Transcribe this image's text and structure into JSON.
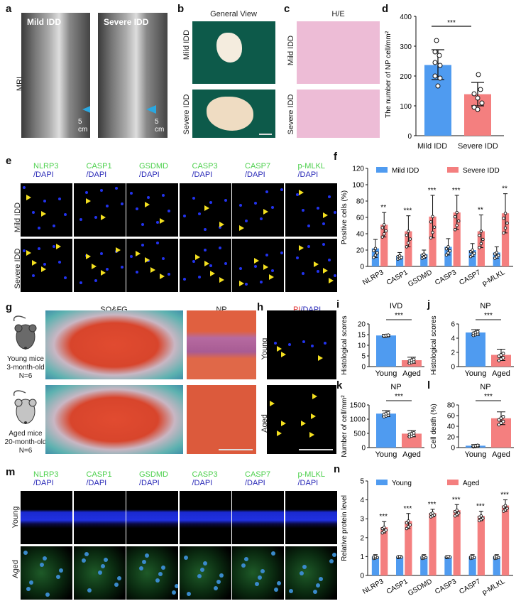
{
  "panels": {
    "a": {
      "letter": "a",
      "row_label": "MRI",
      "images": [
        {
          "label": "Mild IDD",
          "scale": "5 cm"
        },
        {
          "label": "Severe IDD",
          "scale": "5 cm"
        }
      ]
    },
    "b": {
      "letter": "b",
      "title": "General View",
      "rows": [
        "Mild IDD",
        "Severe IDD"
      ]
    },
    "c": {
      "letter": "c",
      "title": "H/E",
      "rows": [
        "Mild IDD",
        "Severe IDD"
      ]
    },
    "d": {
      "letter": "d"
    },
    "e": {
      "letter": "e",
      "stains": [
        {
          "marker": "NLRP3",
          "counter": "/DAPI"
        },
        {
          "marker": "CASP1",
          "counter": "/DAPI"
        },
        {
          "marker": "GSDMD",
          "counter": "/DAPI"
        },
        {
          "marker": "CASP3",
          "counter": "/DAPI"
        },
        {
          "marker": "CASP7",
          "counter": "/DAPI"
        },
        {
          "marker": "p-MLKL",
          "counter": "/DAPI"
        }
      ],
      "rows": [
        "Mild IDD",
        "Severe IDD"
      ]
    },
    "f": {
      "letter": "f"
    },
    "g": {
      "letter": "g",
      "title_main": "SO&FG",
      "title_np": "NP",
      "young": {
        "line1": "Young mice",
        "line2": "3-month-old",
        "line3": "N=6"
      },
      "aged": {
        "line1": "Aged mice",
        "line2": "20-month-old",
        "line3": "N=6"
      }
    },
    "h": {
      "letter": "h",
      "title_pi": "PI",
      "title_dapi": "/DAPI",
      "rows": [
        "Young",
        "Aged"
      ]
    },
    "i": {
      "letter": "i"
    },
    "j": {
      "letter": "j"
    },
    "k": {
      "letter": "k"
    },
    "l": {
      "letter": "l"
    },
    "m": {
      "letter": "m",
      "stains": [
        {
          "marker": "NLRP3",
          "counter": "/DAPI"
        },
        {
          "marker": "CASP1",
          "counter": "/DAPI"
        },
        {
          "marker": "GSDMD",
          "counter": "/DAPI"
        },
        {
          "marker": "CASP3",
          "counter": "/DAPI"
        },
        {
          "marker": "CASP7",
          "counter": "/DAPI"
        },
        {
          "marker": "p-MLKL",
          "counter": "/DAPI"
        }
      ],
      "rows": [
        "Young",
        "Aged"
      ]
    },
    "n": {
      "letter": "n"
    }
  },
  "colors": {
    "blue": "#4f9bf0",
    "red": "#f47f7f"
  },
  "chart_data": [
    {
      "id": "d",
      "type": "bar",
      "title": "",
      "categories": [
        "Mild IDD",
        "Severe IDD"
      ],
      "values": [
        237,
        139
      ],
      "errors": [
        50,
        40
      ],
      "points": [
        [
          320,
          288,
          265,
          240,
          232,
          198,
          192,
          168
        ],
        [
          205,
          180,
          157,
          143,
          125,
          108,
          105,
          90
        ]
      ],
      "ylabel": "The number of NP cell/mm²",
      "ylim": [
        0,
        400
      ],
      "yticks": [
        0,
        100,
        200,
        300,
        400
      ],
      "significance": "***"
    },
    {
      "id": "f",
      "type": "bar",
      "categories": [
        "NLRP3",
        "CASP1",
        "GSDMD",
        "CASP3",
        "CASP7",
        "p-MLKL"
      ],
      "series": [
        {
          "name": "Mild IDD",
          "values": [
            22,
            13,
            15,
            24,
            20,
            17
          ],
          "errors": [
            11,
            4,
            5,
            10,
            8,
            7
          ]
        },
        {
          "name": "Severe IDD",
          "values": [
            51,
            43,
            61,
            66,
            43,
            65
          ],
          "errors": [
            15,
            19,
            26,
            21,
            20,
            24
          ]
        }
      ],
      "significance": [
        "**",
        "***",
        "***",
        "***",
        "**",
        "**"
      ],
      "ylabel": "Positive cells (%)",
      "ylim": [
        0,
        120
      ],
      "yticks": [
        0,
        20,
        40,
        60,
        80,
        100,
        120
      ],
      "legend_position": "top"
    },
    {
      "id": "i",
      "type": "bar",
      "title": "IVD",
      "categories": [
        "Young",
        "Aged"
      ],
      "values": [
        14.6,
        3.0
      ],
      "errors": [
        0.5,
        1.4
      ],
      "ylabel": "Histological scores",
      "ylim": [
        0,
        20
      ],
      "yticks": [
        0,
        5,
        10,
        15,
        20
      ],
      "significance": "***"
    },
    {
      "id": "j",
      "type": "bar",
      "title": "NP",
      "categories": [
        "Young",
        "Aged"
      ],
      "values": [
        4.8,
        1.65
      ],
      "errors": [
        0.4,
        0.8
      ],
      "ylabel": "Histological scores",
      "ylim": [
        0,
        6
      ],
      "yticks": [
        0,
        2,
        4,
        6
      ],
      "significance": "***"
    },
    {
      "id": "k",
      "type": "bar",
      "title": "NP",
      "categories": [
        "Young",
        "Aged"
      ],
      "values": [
        1195,
        490
      ],
      "errors": [
        105,
        110
      ],
      "ylabel": "Number of cell/mm²",
      "ylim": [
        0,
        1500
      ],
      "yticks": [
        0,
        500,
        1000,
        1500
      ],
      "significance": "***"
    },
    {
      "id": "l",
      "type": "bar",
      "title": "NP",
      "categories": [
        "Young",
        "Aged"
      ],
      "values": [
        3.5,
        55
      ],
      "errors": [
        2,
        12
      ],
      "ylabel": "Cell death (%)",
      "ylim": [
        0,
        80
      ],
      "yticks": [
        0,
        20,
        40,
        60,
        80
      ],
      "significance": "***"
    },
    {
      "id": "n",
      "type": "bar",
      "categories": [
        "NLRP3",
        "CASP1",
        "GSDMD",
        "CASP3",
        "CASP7",
        "p-MLKL"
      ],
      "series": [
        {
          "name": "Young",
          "values": [
            1.0,
            1.0,
            1.0,
            1.0,
            1.0,
            1.0
          ],
          "errors": [
            0.1,
            0.05,
            0.1,
            0.05,
            0.1,
            0.1
          ]
        },
        {
          "name": "Aged",
          "values": [
            2.55,
            2.88,
            3.3,
            3.45,
            3.15,
            3.7
          ],
          "errors": [
            0.3,
            0.4,
            0.2,
            0.3,
            0.25,
            0.3
          ]
        }
      ],
      "significance": [
        "***",
        "***",
        "***",
        "***",
        "***",
        "***"
      ],
      "ylabel": "Relative protein level",
      "ylim": [
        0,
        5
      ],
      "yticks": [
        0,
        1,
        2,
        3,
        4,
        5
      ],
      "legend_position": "top"
    }
  ]
}
